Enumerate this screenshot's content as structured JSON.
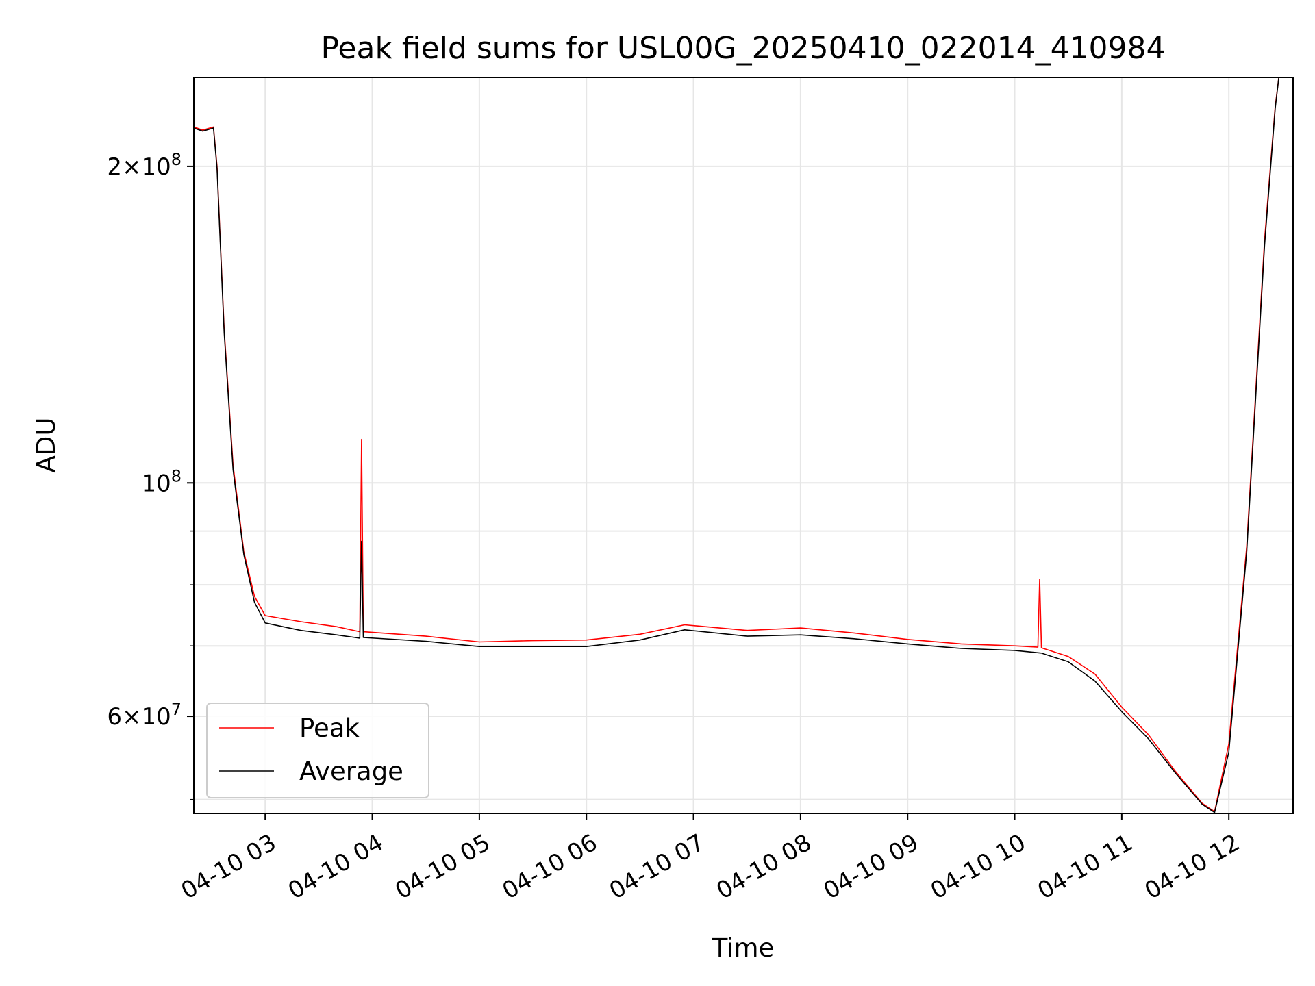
{
  "chart_data": {
    "type": "line",
    "title": "Peak field sums for USL00G_20250410_022014_410984",
    "xlabel": "Time",
    "ylabel": "ADU",
    "y_scale": "log",
    "ylim": [
      48500000,
      243000000
    ],
    "xlim": [
      "2025-04-10 02:20",
      "2025-04-10 12:36"
    ],
    "grid": true,
    "legend_position": "lower-left",
    "x_ticks": [
      {
        "t": "2025-04-10 03:00",
        "label": "04-10 03"
      },
      {
        "t": "2025-04-10 04:00",
        "label": "04-10 04"
      },
      {
        "t": "2025-04-10 05:00",
        "label": "04-10 05"
      },
      {
        "t": "2025-04-10 06:00",
        "label": "04-10 06"
      },
      {
        "t": "2025-04-10 07:00",
        "label": "04-10 07"
      },
      {
        "t": "2025-04-10 08:00",
        "label": "04-10 08"
      },
      {
        "t": "2025-04-10 09:00",
        "label": "04-10 09"
      },
      {
        "t": "2025-04-10 10:00",
        "label": "04-10 10"
      },
      {
        "t": "2025-04-10 11:00",
        "label": "04-10 11"
      },
      {
        "t": "2025-04-10 12:00",
        "label": "04-10 12"
      }
    ],
    "y_ticks_major": [
      {
        "value": 200000000,
        "mantissa": "2",
        "exponent": "8"
      },
      {
        "value": 100000000,
        "mantissa": "",
        "exponent": "8"
      },
      {
        "value": 60000000,
        "mantissa": "6",
        "exponent": "7"
      }
    ],
    "y_ticks_minor": [
      50000000,
      70000000,
      80000000,
      90000000
    ],
    "series": [
      {
        "name": "Peak",
        "color": "#ff0000",
        "points": [
          [
            "2025-04-10 02:20",
            218000000
          ],
          [
            "2025-04-10 02:25",
            216500000
          ],
          [
            "2025-04-10 02:31",
            218000000
          ],
          [
            "2025-04-10 02:33",
            200000000
          ],
          [
            "2025-04-10 02:37",
            140000000
          ],
          [
            "2025-04-10 02:42",
            104000000
          ],
          [
            "2025-04-10 02:48",
            86000000
          ],
          [
            "2025-04-10 02:54",
            78000000
          ],
          [
            "2025-04-10 03:00",
            74800000
          ],
          [
            "2025-04-10 03:20",
            73800000
          ],
          [
            "2025-04-10 03:40",
            73000000
          ],
          [
            "2025-04-10 03:53",
            72200000
          ],
          [
            "2025-04-10 03:54",
            110000000
          ],
          [
            "2025-04-10 03:55",
            72200000
          ],
          [
            "2025-04-10 04:30",
            71500000
          ],
          [
            "2025-04-10 05:00",
            70600000
          ],
          [
            "2025-04-10 05:30",
            70800000
          ],
          [
            "2025-04-10 06:00",
            70900000
          ],
          [
            "2025-04-10 06:30",
            71800000
          ],
          [
            "2025-04-10 06:55",
            73300000
          ],
          [
            "2025-04-10 07:30",
            72400000
          ],
          [
            "2025-04-10 08:00",
            72800000
          ],
          [
            "2025-04-10 08:30",
            72000000
          ],
          [
            "2025-04-10 09:00",
            71000000
          ],
          [
            "2025-04-10 09:30",
            70300000
          ],
          [
            "2025-04-10 10:00",
            70000000
          ],
          [
            "2025-04-10 10:13",
            69800000
          ],
          [
            "2025-04-10 10:14",
            81000000
          ],
          [
            "2025-04-10 10:15",
            69700000
          ],
          [
            "2025-04-10 10:30",
            68400000
          ],
          [
            "2025-04-10 10:45",
            65800000
          ],
          [
            "2025-04-10 11:00",
            61200000
          ],
          [
            "2025-04-10 11:15",
            57600000
          ],
          [
            "2025-04-10 11:30",
            53200000
          ],
          [
            "2025-04-10 11:45",
            49600000
          ],
          [
            "2025-04-10 11:52",
            48700000
          ],
          [
            "2025-04-10 12:00",
            56500000
          ],
          [
            "2025-04-10 12:10",
            87000000
          ],
          [
            "2025-04-10 12:20",
            170000000
          ],
          [
            "2025-04-10 12:26",
            228000000
          ],
          [
            "2025-04-10 12:28",
            243000000
          ]
        ]
      },
      {
        "name": "Average",
        "color": "#000000",
        "points": [
          [
            "2025-04-10 02:20",
            217500000
          ],
          [
            "2025-04-10 02:25",
            216000000
          ],
          [
            "2025-04-10 02:31",
            217500000
          ],
          [
            "2025-04-10 02:33",
            199000000
          ],
          [
            "2025-04-10 02:37",
            139000000
          ],
          [
            "2025-04-10 02:42",
            103000000
          ],
          [
            "2025-04-10 02:48",
            85500000
          ],
          [
            "2025-04-10 02:54",
            77000000
          ],
          [
            "2025-04-10 03:00",
            73600000
          ],
          [
            "2025-04-10 03:20",
            72400000
          ],
          [
            "2025-04-10 03:40",
            71700000
          ],
          [
            "2025-04-10 03:53",
            71200000
          ],
          [
            "2025-04-10 03:54",
            88000000
          ],
          [
            "2025-04-10 03:55",
            71300000
          ],
          [
            "2025-04-10 04:30",
            70700000
          ],
          [
            "2025-04-10 05:00",
            69900000
          ],
          [
            "2025-04-10 05:30",
            69900000
          ],
          [
            "2025-04-10 06:00",
            69900000
          ],
          [
            "2025-04-10 06:30",
            70900000
          ],
          [
            "2025-04-10 06:55",
            72500000
          ],
          [
            "2025-04-10 07:30",
            71500000
          ],
          [
            "2025-04-10 08:00",
            71700000
          ],
          [
            "2025-04-10 08:30",
            71100000
          ],
          [
            "2025-04-10 09:00",
            70300000
          ],
          [
            "2025-04-10 09:30",
            69600000
          ],
          [
            "2025-04-10 10:00",
            69300000
          ],
          [
            "2025-04-10 10:15",
            68900000
          ],
          [
            "2025-04-10 10:30",
            67600000
          ],
          [
            "2025-04-10 10:45",
            64800000
          ],
          [
            "2025-04-10 11:00",
            60600000
          ],
          [
            "2025-04-10 11:15",
            57100000
          ],
          [
            "2025-04-10 11:30",
            53000000
          ],
          [
            "2025-04-10 11:45",
            49500000
          ],
          [
            "2025-04-10 11:52",
            48600000
          ],
          [
            "2025-04-10 12:00",
            55500000
          ],
          [
            "2025-04-10 12:10",
            86000000
          ],
          [
            "2025-04-10 12:20",
            168000000
          ],
          [
            "2025-04-10 12:26",
            227000000
          ],
          [
            "2025-04-10 12:28",
            243000000
          ]
        ]
      }
    ]
  }
}
